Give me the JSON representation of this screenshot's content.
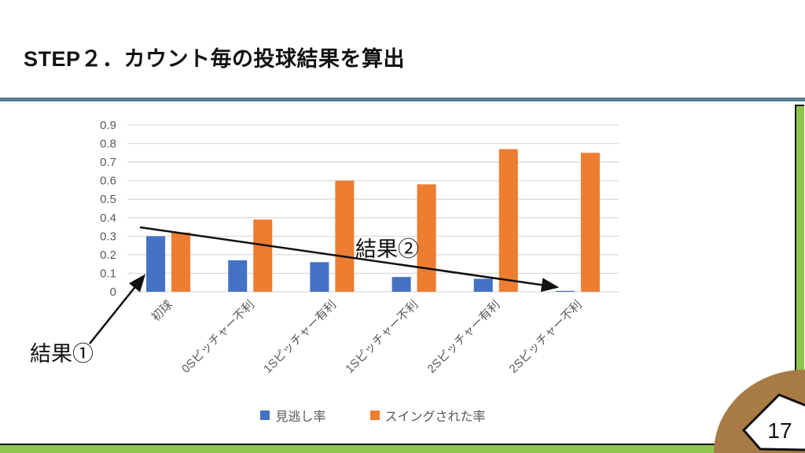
{
  "slide": {
    "title": "STEP２．カウント毎の投球結果を算出",
    "page_number": "17"
  },
  "theme": {
    "rule_color": "#54808E",
    "border_green": "#8FC64E",
    "corner_brown": "#A87B46",
    "axis_text_color": "#595959",
    "gridline_color": "#D9D9D9"
  },
  "annotations": {
    "result1_label": "結果①",
    "result2_label": "結果②"
  },
  "chart_data": {
    "type": "bar",
    "title": "",
    "xlabel": "",
    "ylabel": "",
    "categories": [
      "初球",
      "0Sピッチャー不利",
      "1Sピッチャー有利",
      "1Sピッチャー不利",
      "2Sピッチャー有利",
      "2Sピッチャー不利"
    ],
    "series": [
      {
        "name": "見逃し率",
        "color": "#4472C4",
        "values": [
          0.3,
          0.17,
          0.16,
          0.08,
          0.07,
          0.005
        ]
      },
      {
        "name": "スイングされた率",
        "color": "#ED7D31",
        "values": [
          0.32,
          0.39,
          0.6,
          0.58,
          0.77,
          0.75
        ]
      }
    ],
    "ylim": [
      0,
      0.9
    ],
    "yticks": [
      0,
      0.1,
      0.2,
      0.3,
      0.4,
      0.5,
      0.6,
      0.7,
      0.8,
      0.9
    ],
    "ytick_labels": [
      "0",
      "0.1",
      "0.2",
      "0.3",
      "0.4",
      "0.5",
      "0.6",
      "0.7",
      "0.8",
      "0.9"
    ],
    "grid": true,
    "legend_position": "bottom",
    "xtick_rotation": -45
  }
}
